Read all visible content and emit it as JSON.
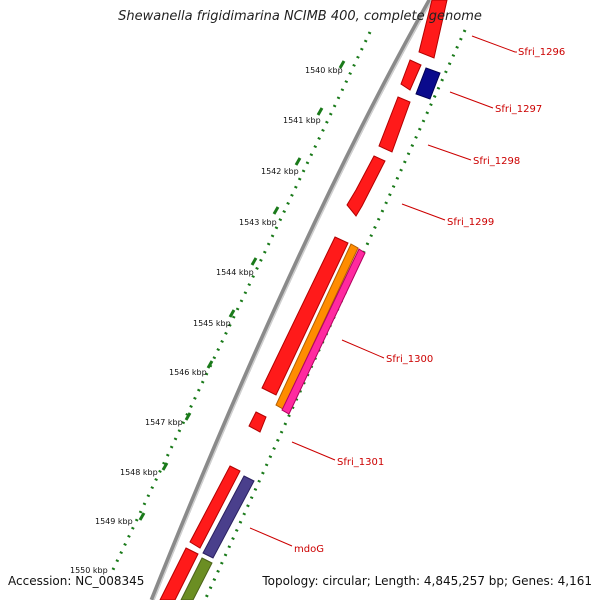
{
  "title": "Shewanella frigidimarina NCIMB 400, complete genome",
  "accession": "Accession: NC_008345",
  "summary": "Topology: circular; Length: 4,845,257 bp; Genes: 4,161",
  "colors": {
    "backbone": "#8a8a8a",
    "tick": "#1a7a1a",
    "gene_red": "#ff1a1a",
    "gene_navy": "#0a0a8c",
    "gene_orange": "#ff8c00",
    "gene_pink": "#ff2aa0",
    "gene_slate": "#4a3f8c",
    "gene_olive": "#6b8e23",
    "label": "#cc0000"
  },
  "scale": {
    "unit": "kbp",
    "labels": [
      "1540 kbp",
      "1541 kbp",
      "1542 kbp",
      "1543 kbp",
      "1544 kbp",
      "1545 kbp",
      "1546 kbp",
      "1547 kbp",
      "1548 kbp",
      "1549 kbp",
      "1550 kbp"
    ]
  },
  "gene_labels": [
    "Sfri_1296",
    "Sfri_1297",
    "Sfri_1298",
    "Sfri_1299",
    "Sfri_1300",
    "Sfri_1301",
    "mdoG"
  ]
}
